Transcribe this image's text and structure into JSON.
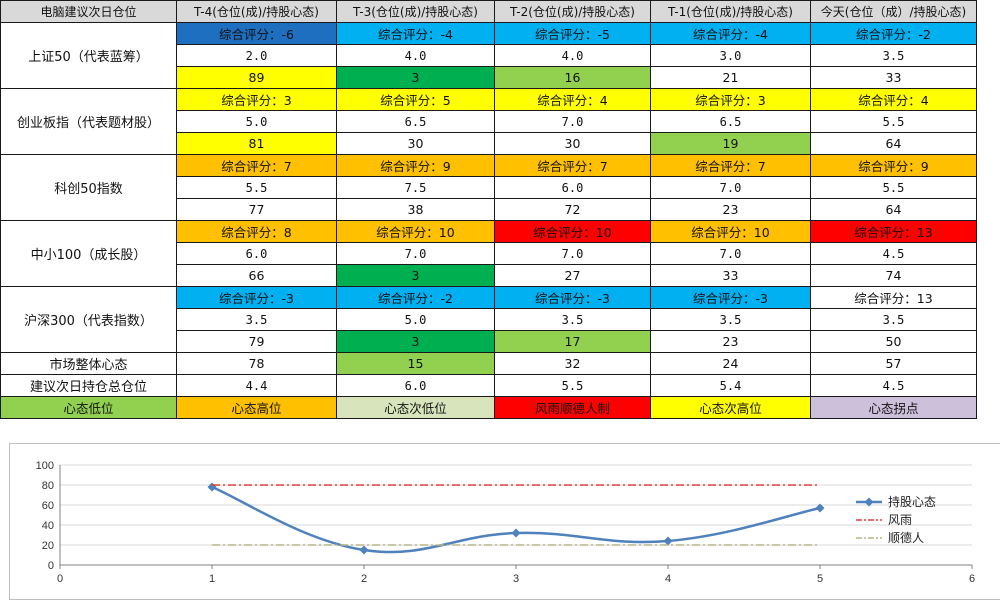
{
  "colors": {
    "blue_dark": "#1f6fc1",
    "blue": "#00b0f0",
    "yellow": "#ffff00",
    "orange": "#ffc000",
    "red": "#ff0000",
    "green_dark": "#00b050",
    "green_light": "#92d050",
    "sage": "#d8e4bc",
    "lavender": "#ccc0da",
    "white": "#ffffff",
    "header_gray": "#d9d9d9"
  },
  "table": {
    "corner": "电脑建议次日仓位",
    "columns": [
      "T-4(仓位(成)/持股心态)",
      "T-3(仓位(成)/持股心态)",
      "T-2(仓位(成)/持股心态)",
      "T-1(仓位(成)/持股心态)",
      "今天(仓位（成）/持股心态)"
    ],
    "groups": [
      {
        "label": "上证50（代表蓝筹）",
        "score_row": [
          {
            "text": "综合评分：-6",
            "color": "blue_dark"
          },
          {
            "text": "综合评分：-4",
            "color": "blue"
          },
          {
            "text": "综合评分：-5",
            "color": "blue"
          },
          {
            "text": "综合评分：-4",
            "color": "blue"
          },
          {
            "text": "综合评分：-2",
            "color": "blue"
          }
        ],
        "position_row": [
          "2.0",
          "4.0",
          "4.0",
          "3.0",
          "3.5"
        ],
        "mood_row": [
          {
            "text": "89",
            "color": "yellow"
          },
          {
            "text": "3",
            "color": "green_dark"
          },
          {
            "text": "16",
            "color": "green_light"
          },
          {
            "text": "21",
            "color": "white"
          },
          {
            "text": "33",
            "color": "white"
          }
        ]
      },
      {
        "label": "创业板指（代表题材股）",
        "score_row": [
          {
            "text": "综合评分：3",
            "color": "yellow"
          },
          {
            "text": "综合评分：5",
            "color": "yellow"
          },
          {
            "text": "综合评分：4",
            "color": "yellow"
          },
          {
            "text": "综合评分：3",
            "color": "yellow"
          },
          {
            "text": "综合评分：4",
            "color": "yellow"
          }
        ],
        "position_row": [
          "5.0",
          "6.5",
          "7.0",
          "6.5",
          "5.5"
        ],
        "mood_row": [
          {
            "text": "81",
            "color": "yellow"
          },
          {
            "text": "30",
            "color": "white"
          },
          {
            "text": "30",
            "color": "white"
          },
          {
            "text": "19",
            "color": "green_light"
          },
          {
            "text": "64",
            "color": "white"
          }
        ]
      },
      {
        "label": "科创50指数",
        "score_row": [
          {
            "text": "综合评分：7",
            "color": "orange"
          },
          {
            "text": "综合评分：9",
            "color": "orange"
          },
          {
            "text": "综合评分：7",
            "color": "orange"
          },
          {
            "text": "综合评分：7",
            "color": "orange"
          },
          {
            "text": "综合评分：9",
            "color": "orange"
          }
        ],
        "position_row": [
          "5.5",
          "7.5",
          "6.0",
          "7.0",
          "5.5"
        ],
        "mood_row": [
          {
            "text": "77",
            "color": "white"
          },
          {
            "text": "38",
            "color": "white"
          },
          {
            "text": "72",
            "color": "white"
          },
          {
            "text": "23",
            "color": "white"
          },
          {
            "text": "64",
            "color": "white"
          }
        ]
      },
      {
        "label": "中小100（成长股）",
        "score_row": [
          {
            "text": "综合评分：8",
            "color": "orange"
          },
          {
            "text": "综合评分：10",
            "color": "orange"
          },
          {
            "text": "综合评分：10",
            "color": "red"
          },
          {
            "text": "综合评分：10",
            "color": "orange"
          },
          {
            "text": "综合评分：13",
            "color": "red"
          }
        ],
        "position_row": [
          "6.0",
          "7.0",
          "7.0",
          "7.0",
          "4.5"
        ],
        "mood_row": [
          {
            "text": "66",
            "color": "white"
          },
          {
            "text": "3",
            "color": "green_dark"
          },
          {
            "text": "27",
            "color": "white"
          },
          {
            "text": "33",
            "color": "white"
          },
          {
            "text": "74",
            "color": "white"
          }
        ]
      },
      {
        "label": "沪深300（代表指数）",
        "score_row": [
          {
            "text": "综合评分：-3",
            "color": "blue"
          },
          {
            "text": "综合评分：-2",
            "color": "blue"
          },
          {
            "text": "综合评分：-3",
            "color": "blue"
          },
          {
            "text": "综合评分：-3",
            "color": "blue"
          },
          {
            "text": "综合评分：13",
            "color": "white"
          }
        ],
        "position_row": [
          "3.5",
          "5.0",
          "3.5",
          "3.5",
          "3.5"
        ],
        "mood_row": [
          {
            "text": "79",
            "color": "white"
          },
          {
            "text": "3",
            "color": "green_dark"
          },
          {
            "text": "17",
            "color": "green_light"
          },
          {
            "text": "23",
            "color": "white"
          },
          {
            "text": "50",
            "color": "white"
          }
        ]
      }
    ],
    "market_mood": {
      "label": "市场整体心态",
      "cells": [
        {
          "text": "78",
          "color": "white"
        },
        {
          "text": "15",
          "color": "green_light"
        },
        {
          "text": "32",
          "color": "white"
        },
        {
          "text": "24",
          "color": "white"
        },
        {
          "text": "57",
          "color": "white"
        }
      ]
    },
    "total_position": {
      "label": "建议次日持仓总仓位",
      "cells": [
        "4.4",
        "6.0",
        "5.5",
        "5.4",
        "4.5"
      ]
    },
    "legend_row": [
      {
        "text": "心态低位",
        "color": "green_light"
      },
      {
        "text": "心态高位",
        "color": "orange"
      },
      {
        "text": "心态次低位",
        "color": "sage"
      },
      {
        "text": "风雨顺德人制",
        "color": "red"
      },
      {
        "text": "心态次高位",
        "color": "yellow"
      },
      {
        "text": "心态拐点",
        "color": "lavender"
      }
    ]
  },
  "chart_data": {
    "type": "line",
    "x_ticks": [
      "0",
      "1",
      "2",
      "3",
      "4",
      "5",
      "6"
    ],
    "y_ticks": [
      "0",
      "20",
      "40",
      "60",
      "80",
      "100"
    ],
    "xlim": [
      0,
      6
    ],
    "ylim": [
      0,
      100
    ],
    "grid": true,
    "legend_position": "right",
    "series": [
      {
        "name": "持股心态",
        "x": [
          1,
          2,
          3,
          4,
          5
        ],
        "values": [
          78,
          15,
          32,
          24,
          57
        ],
        "color": "#4f81bd",
        "style": "smooth-marker"
      },
      {
        "name": "风雨",
        "x": [
          1,
          5
        ],
        "values": [
          80,
          80
        ],
        "color": "#e0403c",
        "style": "dash-dot"
      },
      {
        "name": "顺德人",
        "x": [
          1,
          5
        ],
        "values": [
          20,
          20
        ],
        "color": "#b5b58a",
        "style": "dash-dot"
      }
    ]
  }
}
